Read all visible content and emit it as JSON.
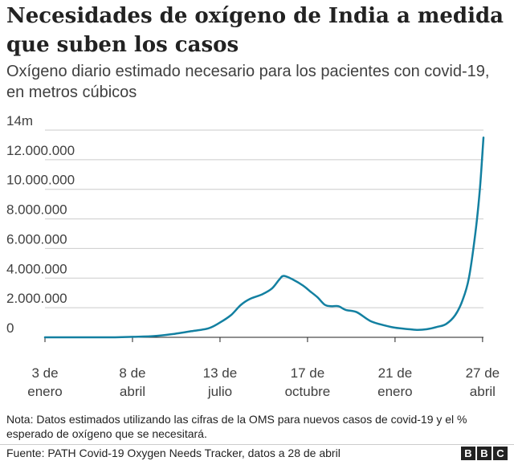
{
  "header": {
    "title": "Necesidades de oxígeno de India a medida que suben los casos",
    "subtitle": "Oxígeno diario estimado necesario para los pacientes con covid-19, en metros cúbicos"
  },
  "footer": {
    "note": "Nota: Datos estimados utilizando las cifras de la OMS para nuevos casos de covid-19 y el % esperado de oxígeno que se necesitará.",
    "source": "Fuente: PATH Covid-19 Oxygen Needs Tracker, datos a 28 de abril",
    "logo_letters": [
      "B",
      "B",
      "C"
    ]
  },
  "colors": {
    "line": "#1380a1",
    "grid": "#cbcbcb",
    "axis": "#222222",
    "text": "#404040"
  },
  "chart_data": {
    "type": "line",
    "title": "Necesidades de oxígeno de India a medida que suben los casos",
    "subtitle": "Oxígeno diario estimado necesario para los pacientes con covid-19, en metros cúbicos",
    "ylim": [
      0,
      14000000
    ],
    "yticks": [
      0,
      2000000,
      4000000,
      6000000,
      8000000,
      10000000,
      12000000,
      14000000
    ],
    "ytick_labels": [
      "0",
      "2.000.000",
      "4.000.000",
      "6.000.000",
      "8.000.000",
      "10.000.000",
      "12.000.000",
      "14m"
    ],
    "xlim": [
      "2020-01-03",
      "2021-04-28"
    ],
    "xticks": [
      "2020-01-03",
      "2020-04-08",
      "2020-07-13",
      "2020-10-17",
      "2021-01-21",
      "2021-04-27"
    ],
    "xtick_labels": [
      [
        "3 de",
        "enero"
      ],
      [
        "8 de",
        "abril"
      ],
      [
        "13 de",
        "julio"
      ],
      [
        "17 de",
        "octubre"
      ],
      [
        "21 de",
        "enero"
      ],
      [
        "27 de",
        "abril"
      ]
    ],
    "grid": "horizontal",
    "series": [
      {
        "x": [
          "2020-01-03",
          "2020-02-15",
          "2020-03-20",
          "2020-04-08",
          "2020-05-01",
          "2020-05-20",
          "2020-06-10",
          "2020-06-30",
          "2020-07-13",
          "2020-07-25",
          "2020-08-05",
          "2020-08-15",
          "2020-08-28",
          "2020-09-08",
          "2020-09-16",
          "2020-09-21",
          "2020-10-01",
          "2020-10-12",
          "2020-10-20",
          "2020-10-28",
          "2020-11-05",
          "2020-11-12",
          "2020-11-20",
          "2020-11-28",
          "2020-12-10",
          "2020-12-25",
          "2021-01-10",
          "2021-01-21",
          "2021-02-05",
          "2021-02-15",
          "2021-02-25",
          "2021-03-08",
          "2021-03-18",
          "2021-03-28",
          "2021-04-05",
          "2021-04-12",
          "2021-04-19",
          "2021-04-24",
          "2021-04-28"
        ],
        "y": [
          0,
          0,
          0,
          30000,
          80000,
          200000,
          400000,
          600000,
          1000000,
          1500000,
          2200000,
          2600000,
          2900000,
          3300000,
          3900000,
          4150000,
          3900000,
          3500000,
          3100000,
          2700000,
          2200000,
          2100000,
          2100000,
          1850000,
          1700000,
          1100000,
          800000,
          650000,
          550000,
          500000,
          550000,
          700000,
          900000,
          1500000,
          2500000,
          4000000,
          7000000,
          10000000,
          13500000
        ]
      }
    ]
  }
}
